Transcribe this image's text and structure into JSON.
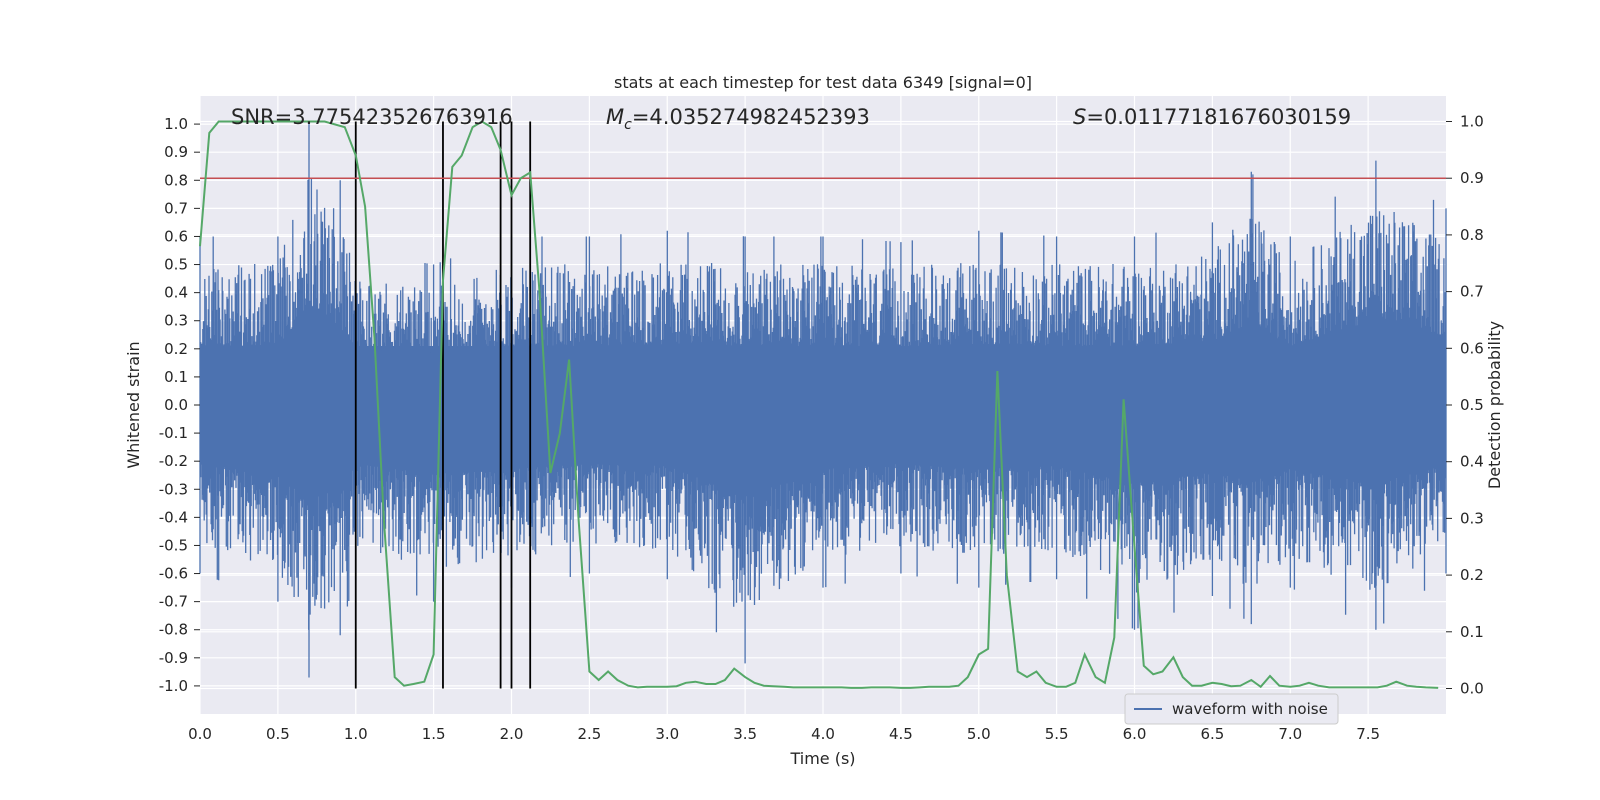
{
  "chart_data": {
    "type": "line",
    "title": "stats at each timestep for test data 6349 [signal=0]",
    "xlabel": "Time (s)",
    "ylabel": "Whitened strain",
    "y2label": "Detection probability",
    "xlim": [
      0.0,
      8.0
    ],
    "ylim": [
      -1.1,
      1.1
    ],
    "y2lim": [
      -0.045,
      1.045
    ],
    "grid": true,
    "xticks": [
      "0.0",
      "0.5",
      "1.0",
      "1.5",
      "2.0",
      "2.5",
      "3.0",
      "3.5",
      "4.0",
      "4.5",
      "5.0",
      "5.5",
      "6.0",
      "6.5",
      "7.0",
      "7.5"
    ],
    "yticks": [
      "-1.0",
      "-0.9",
      "-0.8",
      "-0.7",
      "-0.6",
      "-0.5",
      "-0.4",
      "-0.3",
      "-0.2",
      "-0.1",
      "0.0",
      "0.1",
      "0.2",
      "0.3",
      "0.4",
      "0.5",
      "0.6",
      "0.7",
      "0.8",
      "0.9",
      "1.0"
    ],
    "y2ticks": [
      "0.0",
      "0.1",
      "0.2",
      "0.3",
      "0.4",
      "0.5",
      "0.6",
      "0.7",
      "0.8",
      "0.9",
      "1.0"
    ],
    "annotations": {
      "snr_label": "SNR=3.775423526763916",
      "mc_symbol": "M",
      "mc_sub": "c",
      "mc_value": "=4.035274982452393",
      "s_symbol": "S",
      "s_value": "=0.01177181676030159"
    },
    "threshold": {
      "y2": 0.9,
      "color": "#c44e52"
    },
    "vertical_markers": [
      1.0,
      1.56,
      1.93,
      2.0,
      2.12
    ],
    "legend": {
      "label": "waveform with noise",
      "placement": "lower-right"
    },
    "series": [
      {
        "name": "waveform with noise",
        "axis": "left",
        "color": "#4c72b0",
        "amplitude_note_envelope": {
          "x": [
            0.0,
            0.5,
            0.7,
            0.9,
            1.0,
            1.5,
            2.0,
            2.5,
            3.0,
            3.5,
            4.0,
            4.5,
            5.0,
            5.5,
            6.0,
            6.5,
            6.75,
            7.0,
            7.55,
            8.0
          ],
          "upper": [
            0.6,
            0.6,
            1.0,
            0.8,
            0.55,
            0.5,
            0.6,
            0.6,
            0.62,
            0.6,
            0.6,
            0.58,
            0.62,
            0.6,
            0.6,
            0.65,
            0.83,
            0.6,
            0.87,
            0.7
          ],
          "lower": [
            -0.6,
            -0.7,
            -0.97,
            -0.82,
            -0.6,
            -0.7,
            -0.65,
            -0.6,
            -0.62,
            -0.92,
            -0.65,
            -0.6,
            -0.65,
            -0.62,
            -0.8,
            -0.68,
            -0.78,
            -0.65,
            -0.8,
            -0.6
          ]
        }
      },
      {
        "name": "detection probability",
        "axis": "right",
        "color": "#55a868",
        "x": [
          0.0,
          0.06,
          0.12,
          0.2,
          0.4,
          0.6,
          0.8,
          0.93,
          1.0,
          1.06,
          1.12,
          1.18,
          1.25,
          1.31,
          1.37,
          1.44,
          1.5,
          1.56,
          1.62,
          1.68,
          1.75,
          1.81,
          1.87,
          1.93,
          2.0,
          2.06,
          2.12,
          2.18,
          2.25,
          2.31,
          2.37,
          2.43,
          2.5,
          2.56,
          2.62,
          2.68,
          2.75,
          2.81,
          2.87,
          2.93,
          3.0,
          3.06,
          3.12,
          3.18,
          3.25,
          3.31,
          3.37,
          3.43,
          3.5,
          3.56,
          3.62,
          3.68,
          3.75,
          3.81,
          3.87,
          3.93,
          4.0,
          4.06,
          4.12,
          4.18,
          4.25,
          4.31,
          4.37,
          4.43,
          4.5,
          4.56,
          4.62,
          4.68,
          4.75,
          4.81,
          4.87,
          4.93,
          5.0,
          5.06,
          5.12,
          5.18,
          5.25,
          5.31,
          5.37,
          5.43,
          5.5,
          5.56,
          5.62,
          5.68,
          5.75,
          5.81,
          5.87,
          5.93,
          6.0,
          6.06,
          6.12,
          6.18,
          6.25,
          6.31,
          6.37,
          6.43,
          6.5,
          6.56,
          6.62,
          6.68,
          6.75,
          6.81,
          6.87,
          6.93,
          7.0,
          7.06,
          7.12,
          7.18,
          7.25,
          7.31,
          7.37,
          7.43,
          7.5,
          7.56,
          7.62,
          7.68,
          7.75,
          7.81,
          7.87,
          7.95
        ],
        "values": [
          0.78,
          0.98,
          1.0,
          1.0,
          1.0,
          1.0,
          1.0,
          0.99,
          0.94,
          0.85,
          0.62,
          0.3,
          0.02,
          0.005,
          0.008,
          0.012,
          0.06,
          0.72,
          0.92,
          0.94,
          0.99,
          1.0,
          0.99,
          0.95,
          0.87,
          0.9,
          0.91,
          0.7,
          0.38,
          0.45,
          0.58,
          0.3,
          0.03,
          0.015,
          0.03,
          0.015,
          0.005,
          0.002,
          0.003,
          0.003,
          0.003,
          0.004,
          0.01,
          0.012,
          0.008,
          0.008,
          0.015,
          0.035,
          0.02,
          0.01,
          0.005,
          0.004,
          0.003,
          0.002,
          0.002,
          0.002,
          0.002,
          0.002,
          0.002,
          0.001,
          0.001,
          0.002,
          0.002,
          0.002,
          0.001,
          0.001,
          0.002,
          0.003,
          0.003,
          0.003,
          0.005,
          0.02,
          0.06,
          0.07,
          0.56,
          0.2,
          0.03,
          0.02,
          0.03,
          0.01,
          0.003,
          0.003,
          0.01,
          0.06,
          0.02,
          0.01,
          0.09,
          0.51,
          0.25,
          0.04,
          0.025,
          0.03,
          0.055,
          0.02,
          0.005,
          0.005,
          0.01,
          0.008,
          0.004,
          0.005,
          0.015,
          0.003,
          0.022,
          0.005,
          0.003,
          0.005,
          0.01,
          0.005,
          0.002,
          0.002,
          0.002,
          0.002,
          0.002,
          0.002,
          0.005,
          0.012,
          0.005,
          0.003,
          0.002,
          0.001
        ]
      }
    ]
  }
}
